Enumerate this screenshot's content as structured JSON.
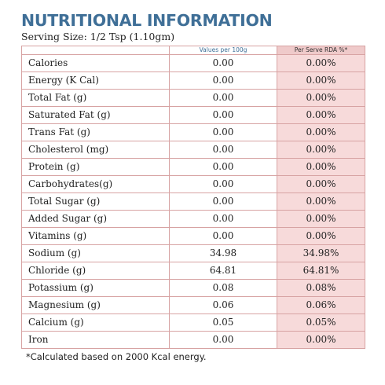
{
  "title": "NUTRITIONAL INFORMATION",
  "serving_size": "Serving Size: 1/2 Tsp (1.10gm)",
  "columns": {
    "name": "",
    "per_100g": "Values per 100g",
    "rda": "Per Serve RDA %*"
  },
  "rows": [
    {
      "name": "Calories",
      "per_100g": "0.00",
      "rda": "0.00%"
    },
    {
      "name": "Energy (K Cal)",
      "per_100g": "0.00",
      "rda": "0.00%"
    },
    {
      "name": "Total Fat (g)",
      "per_100g": "0.00",
      "rda": "0.00%"
    },
    {
      "name": "Saturated Fat (g)",
      "per_100g": "0.00",
      "rda": "0.00%"
    },
    {
      "name": "Trans Fat (g)",
      "per_100g": "0.00",
      "rda": "0.00%"
    },
    {
      "name": "Cholesterol (mg)",
      "per_100g": "0.00",
      "rda": "0.00%"
    },
    {
      "name": "Protein (g)",
      "per_100g": "0.00",
      "rda": "0.00%"
    },
    {
      "name": "Carbohydrates(g)",
      "per_100g": "0.00",
      "rda": "0.00%"
    },
    {
      "name": "Total Sugar (g)",
      "per_100g": "0.00",
      "rda": "0.00%"
    },
    {
      "name": " Added Sugar (g)",
      "per_100g": "0.00",
      "rda": "0.00%"
    },
    {
      "name": "Vitamins (g)",
      "per_100g": "0.00",
      "rda": "0.00%"
    },
    {
      "name": "Sodium (g)",
      "per_100g": "34.98",
      "rda": "34.98%"
    },
    {
      "name": "Chloride (g)",
      "per_100g": "64.81",
      "rda": "64.81%"
    },
    {
      "name": "Potassium (g)",
      "per_100g": "0.08",
      "rda": "0.08%"
    },
    {
      "name": "Magnesium (g)",
      "per_100g": "0.06",
      "rda": "0.06%"
    },
    {
      "name": "Calcium (g)",
      "per_100g": "0.05",
      "rda": "0.05%"
    },
    {
      "name": "Iron",
      "per_100g": "0.00",
      "rda": "0.00%"
    }
  ],
  "footnote": "*Calculated based on 2000 Kcal energy.",
  "colors": {
    "title": "#3f6f97",
    "border": "#d7a3a3",
    "rda_fill": "#f7dada"
  }
}
